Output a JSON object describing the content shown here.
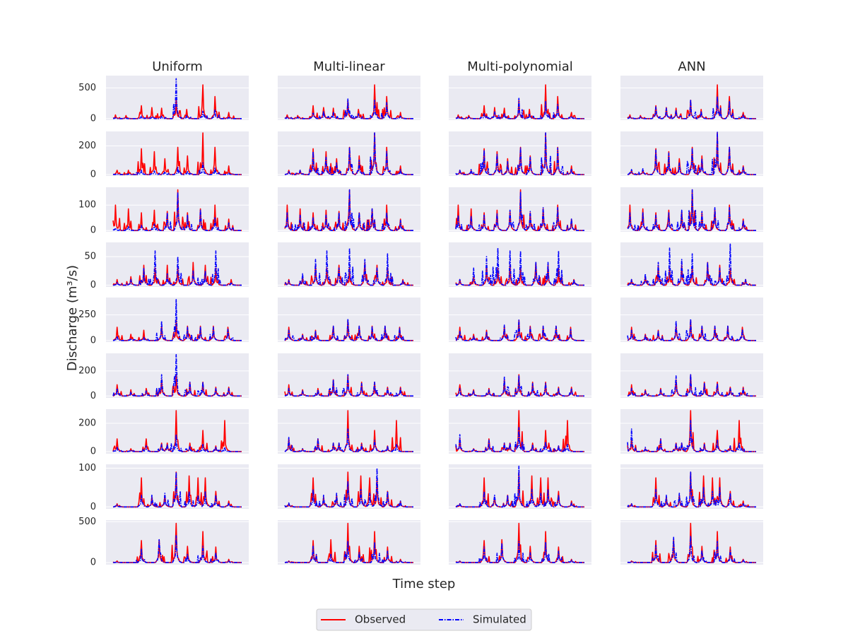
{
  "chart_data": {
    "type": "line",
    "grid": true,
    "legend_placement": "bottom-center",
    "xlabel": "Time step",
    "ylabel": "Discharge (m³/s)",
    "columns": [
      "Uniform",
      "Multi-linear",
      "Multi-polynomial",
      "ANN"
    ],
    "series": [
      {
        "name": "Observed",
        "color": "#ff0000",
        "style": "solid"
      },
      {
        "name": "Simulated",
        "color": "#0000ff",
        "style": "dashdot"
      }
    ],
    "rows": [
      {
        "ylim": [
          -25,
          700
        ],
        "yticks": [
          0,
          500
        ],
        "peaks": [
          {
            "t": 0.02,
            "obs": 60,
            "sim": [
              15,
              25,
              30,
              30
            ]
          },
          {
            "t": 0.1,
            "obs": 50,
            "sim": [
              10,
              25,
              25,
              30
            ]
          },
          {
            "t": 0.22,
            "obs": 210,
            "sim": [
              40,
              90,
              80,
              190
            ]
          },
          {
            "t": 0.3,
            "obs": 180,
            "sim": [
              35,
              120,
              110,
              170
            ]
          },
          {
            "t": 0.38,
            "obs": 170,
            "sim": [
              40,
              100,
              90,
              140
            ]
          },
          {
            "t": 0.49,
            "obs": 300,
            "sim": [
              650,
              320,
              330,
              310
            ]
          },
          {
            "t": 0.57,
            "obs": 150,
            "sim": [
              50,
              80,
              80,
              120
            ]
          },
          {
            "t": 0.7,
            "obs": 550,
            "sim": [
              120,
              300,
              280,
              360
            ]
          },
          {
            "t": 0.79,
            "obs": 360,
            "sim": [
              140,
              260,
              230,
              280
            ]
          },
          {
            "t": 0.9,
            "obs": 100,
            "sim": [
              20,
              40,
              40,
              60
            ]
          }
        ]
      },
      {
        "ylim": [
          -10,
          300
        ],
        "yticks": [
          0,
          200
        ],
        "peaks": [
          {
            "t": 0.03,
            "obs": 30,
            "sim": [
              5,
              25,
              30,
              35
            ]
          },
          {
            "t": 0.12,
            "obs": 30,
            "sim": [
              5,
              30,
              35,
              40
            ]
          },
          {
            "t": 0.22,
            "obs": 180,
            "sim": [
              30,
              160,
              170,
              170
            ]
          },
          {
            "t": 0.32,
            "obs": 160,
            "sim": [
              25,
              120,
              140,
              150
            ]
          },
          {
            "t": 0.4,
            "obs": 110,
            "sim": [
              20,
              80,
              90,
              80
            ]
          },
          {
            "t": 0.5,
            "obs": 190,
            "sim": [
              50,
              190,
              185,
              185
            ]
          },
          {
            "t": 0.58,
            "obs": 130,
            "sim": [
              25,
              100,
              120,
              110
            ]
          },
          {
            "t": 0.7,
            "obs": 290,
            "sim": [
              80,
              290,
              290,
              295
            ]
          },
          {
            "t": 0.79,
            "obs": 190,
            "sim": [
              45,
              160,
              185,
              190
            ]
          },
          {
            "t": 0.9,
            "obs": 60,
            "sim": [
              10,
              35,
              40,
              50
            ]
          }
        ]
      },
      {
        "ylim": [
          -5,
          170
        ],
        "yticks": [
          0,
          100
        ],
        "peaks": [
          {
            "t": 0.02,
            "obs": 100,
            "sim": [
              10,
              70,
              60,
              70
            ]
          },
          {
            "t": 0.12,
            "obs": 85,
            "sim": [
              15,
              60,
              55,
              70
            ]
          },
          {
            "t": 0.22,
            "obs": 70,
            "sim": [
              20,
              50,
              60,
              60
            ]
          },
          {
            "t": 0.32,
            "obs": 80,
            "sim": [
              25,
              60,
              65,
              70
            ]
          },
          {
            "t": 0.42,
            "obs": 75,
            "sim": [
              70,
              70,
              80,
              80
            ]
          },
          {
            "t": 0.5,
            "obs": 160,
            "sim": [
              150,
              160,
              150,
              160
            ]
          },
          {
            "t": 0.58,
            "obs": 70,
            "sim": [
              60,
              70,
              75,
              75
            ]
          },
          {
            "t": 0.68,
            "obs": 85,
            "sim": [
              80,
              85,
              90,
              90
            ]
          },
          {
            "t": 0.79,
            "obs": 100,
            "sim": [
              50,
              70,
              90,
              90
            ]
          },
          {
            "t": 0.9,
            "obs": 45,
            "sim": [
              30,
              40,
              45,
              40
            ]
          }
        ]
      },
      {
        "ylim": [
          -3,
          75
        ],
        "yticks": [
          0,
          50
        ],
        "peaks": [
          {
            "t": 0.03,
            "obs": 10,
            "sim": [
              5,
              8,
              10,
              10
            ]
          },
          {
            "t": 0.14,
            "obs": 15,
            "sim": [
              10,
              20,
              30,
              20
            ]
          },
          {
            "t": 0.24,
            "obs": 35,
            "sim": [
              30,
              45,
              50,
              40
            ]
          },
          {
            "t": 0.33,
            "obs": 30,
            "sim": [
              60,
              60,
              65,
              65
            ]
          },
          {
            "t": 0.42,
            "obs": 35,
            "sim": [
              20,
              30,
              60,
              45
            ]
          },
          {
            "t": 0.5,
            "obs": 30,
            "sim": [
              50,
              65,
              60,
              55
            ]
          },
          {
            "t": 0.62,
            "obs": 40,
            "sim": [
              25,
              45,
              40,
              40
            ]
          },
          {
            "t": 0.72,
            "obs": 35,
            "sim": [
              25,
              30,
              40,
              30
            ]
          },
          {
            "t": 0.8,
            "obs": 30,
            "sim": [
              60,
              55,
              60,
              72
            ]
          },
          {
            "t": 0.92,
            "obs": 10,
            "sim": [
              5,
              8,
              10,
              10
            ]
          }
        ]
      },
      {
        "ylim": [
          -15,
          420
        ],
        "yticks": [
          0,
          250
        ],
        "peaks": [
          {
            "t": 0.03,
            "obs": 130,
            "sim": [
              40,
              100,
              90,
              100
            ]
          },
          {
            "t": 0.14,
            "obs": 60,
            "sim": [
              20,
              50,
              40,
              50
            ]
          },
          {
            "t": 0.24,
            "obs": 100,
            "sim": [
              30,
              90,
              80,
              90
            ]
          },
          {
            "t": 0.38,
            "obs": 140,
            "sim": [
              190,
              140,
              150,
              190
            ]
          },
          {
            "t": 0.49,
            "obs": 200,
            "sim": [
              400,
              210,
              200,
              210
            ]
          },
          {
            "t": 0.58,
            "obs": 140,
            "sim": [
              130,
              140,
              130,
              140
            ]
          },
          {
            "t": 0.68,
            "obs": 140,
            "sim": [
              130,
              140,
              140,
              140
            ]
          },
          {
            "t": 0.78,
            "obs": 140,
            "sim": [
              130,
              140,
              140,
              140
            ]
          },
          {
            "t": 0.89,
            "obs": 130,
            "sim": [
              110,
              120,
              110,
              110
            ]
          }
        ]
      },
      {
        "ylim": [
          -15,
          340
        ],
        "yticks": [
          0,
          200
        ],
        "peaks": [
          {
            "t": 0.03,
            "obs": 90,
            "sim": [
              60,
              60,
              60,
              60
            ]
          },
          {
            "t": 0.14,
            "obs": 50,
            "sim": [
              30,
              40,
              40,
              40
            ]
          },
          {
            "t": 0.26,
            "obs": 60,
            "sim": [
              40,
              50,
              50,
              50
            ]
          },
          {
            "t": 0.38,
            "obs": 130,
            "sim": [
              170,
              130,
              150,
              160
            ]
          },
          {
            "t": 0.49,
            "obs": 170,
            "sim": [
              330,
              170,
              160,
              170
            ]
          },
          {
            "t": 0.6,
            "obs": 110,
            "sim": [
              110,
              100,
              100,
              100
            ]
          },
          {
            "t": 0.7,
            "obs": 110,
            "sim": [
              110,
              110,
              100,
              100
            ]
          },
          {
            "t": 0.8,
            "obs": 70,
            "sim": [
              60,
              60,
              60,
              60
            ]
          },
          {
            "t": 0.9,
            "obs": 70,
            "sim": [
              60,
              60,
              60,
              60
            ]
          }
        ]
      },
      {
        "ylim": [
          -15,
          300
        ],
        "yticks": [
          0,
          200
        ],
        "peaks": [
          {
            "t": 0.03,
            "obs": 90,
            "sim": [
              30,
              100,
              120,
              160
            ]
          },
          {
            "t": 0.14,
            "obs": 20,
            "sim": [
              10,
              20,
              20,
              30
            ]
          },
          {
            "t": 0.26,
            "obs": 90,
            "sim": [
              40,
              90,
              80,
              90
            ]
          },
          {
            "t": 0.38,
            "obs": 60,
            "sim": [
              50,
              60,
              60,
              60
            ]
          },
          {
            "t": 0.42,
            "obs": 60,
            "sim": [
              50,
              60,
              60,
              60
            ]
          },
          {
            "t": 0.49,
            "obs": 290,
            "sim": [
              120,
              160,
              170,
              220
            ]
          },
          {
            "t": 0.6,
            "obs": 60,
            "sim": [
              40,
              50,
              50,
              50
            ]
          },
          {
            "t": 0.7,
            "obs": 150,
            "sim": [
              50,
              80,
              70,
              80
            ]
          },
          {
            "t": 0.8,
            "obs": 40,
            "sim": [
              30,
              40,
              40,
              40
            ]
          },
          {
            "t": 0.87,
            "obs": 220,
            "sim": [
              30,
              50,
              50,
              60
            ]
          }
        ]
      },
      {
        "ylim": [
          -5,
          110
        ],
        "yticks": [
          0,
          100
        ],
        "peaks": [
          {
            "t": 0.03,
            "obs": 8,
            "sim": [
              5,
              10,
              8,
              8
            ]
          },
          {
            "t": 0.22,
            "obs": 75,
            "sim": [
              30,
              45,
              40,
              45
            ]
          },
          {
            "t": 0.3,
            "obs": 25,
            "sim": [
              30,
              30,
              30,
              30
            ]
          },
          {
            "t": 0.4,
            "obs": 30,
            "sim": [
              35,
              35,
              30,
              35
            ]
          },
          {
            "t": 0.49,
            "obs": 90,
            "sim": [
              90,
              65,
              105,
              90
            ]
          },
          {
            "t": 0.59,
            "obs": 80,
            "sim": [
              40,
              45,
              45,
              50
            ]
          },
          {
            "t": 0.66,
            "obs": 75,
            "sim": [
              30,
              35,
              35,
              40
            ]
          },
          {
            "t": 0.72,
            "obs": 75,
            "sim": [
              40,
              100,
              45,
              50
            ]
          },
          {
            "t": 0.8,
            "obs": 40,
            "sim": [
              30,
              40,
              30,
              35
            ]
          },
          {
            "t": 0.9,
            "obs": 15,
            "sim": [
              10,
              15,
              10,
              10
            ]
          }
        ]
      },
      {
        "ylim": [
          -25,
          520
        ],
        "yticks": [
          0,
          500
        ],
        "peaks": [
          {
            "t": 0.03,
            "obs": 20,
            "sim": [
              10,
              15,
              15,
              15
            ]
          },
          {
            "t": 0.22,
            "obs": 270,
            "sim": [
              170,
              200,
              190,
              210
            ]
          },
          {
            "t": 0.36,
            "obs": 280,
            "sim": [
              280,
              100,
              240,
              310
            ]
          },
          {
            "t": 0.49,
            "obs": 480,
            "sim": [
              330,
              260,
              260,
              320
            ]
          },
          {
            "t": 0.58,
            "obs": 200,
            "sim": [
              100,
              120,
              120,
              150
            ]
          },
          {
            "t": 0.7,
            "obs": 380,
            "sim": [
              200,
              250,
              250,
              260
            ]
          },
          {
            "t": 0.8,
            "obs": 190,
            "sim": [
              120,
              140,
              140,
              150
            ]
          },
          {
            "t": 0.9,
            "obs": 40,
            "sim": [
              20,
              30,
              30,
              30
            ]
          }
        ]
      }
    ]
  }
}
